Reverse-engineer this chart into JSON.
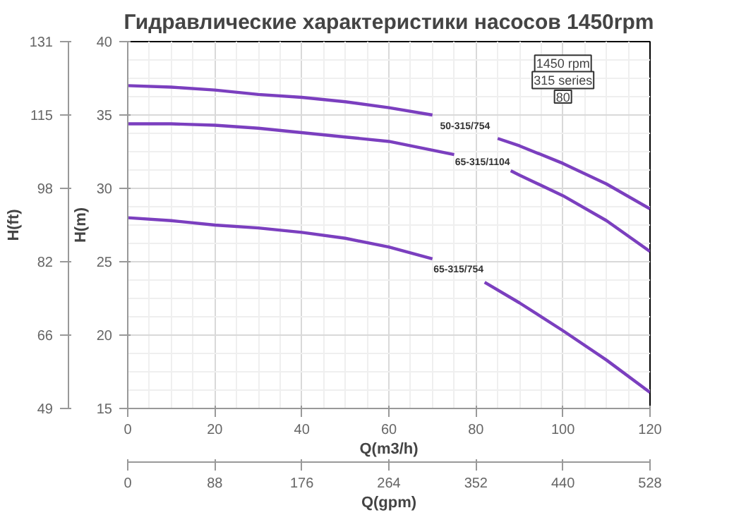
{
  "chart_data": {
    "type": "line",
    "title": "Гидравлические характеристики насосов 1450rpm",
    "xlabel": "Q(m3/h)",
    "ylabel": "H(m)",
    "y2label": "H(ft)",
    "x2label": "Q(gpm)",
    "xlim": [
      0,
      120
    ],
    "xticks": [
      0,
      20,
      40,
      60,
      80,
      100,
      120
    ],
    "x2lim": [
      0,
      528
    ],
    "x2ticks": [
      0,
      88,
      176,
      264,
      352,
      440,
      528
    ],
    "ylim": [
      15,
      40
    ],
    "yticks": [
      15,
      20,
      25,
      30,
      35,
      40
    ],
    "y2lim": [
      49.2,
      131.2
    ],
    "y2ticks": [
      {
        "value": 49.2,
        "label": "49"
      },
      {
        "value": 65.6,
        "label": "66"
      },
      {
        "value": 82.0,
        "label": "82"
      },
      {
        "value": 98.4,
        "label": "98"
      },
      {
        "value": 114.8,
        "label": "115"
      },
      {
        "value": 131.2,
        "label": "131"
      }
    ],
    "grid": true,
    "marker": "none",
    "line_style": "solid",
    "annotations": [
      "1450 rpm",
      "315 series",
      "80"
    ],
    "series": [
      {
        "name": "50-315/754",
        "color": "#7b3fbf",
        "x": [
          0,
          10,
          20,
          30,
          40,
          50,
          60,
          70,
          85,
          90,
          100,
          110,
          120
        ],
        "values": [
          37.0,
          36.9,
          36.7,
          36.4,
          36.2,
          35.9,
          35.5,
          35.0,
          33.4,
          32.9,
          31.7,
          30.3,
          28.6
        ]
      },
      {
        "name": "65-315/1104",
        "color": "#7b3fbf",
        "x": [
          0,
          10,
          20,
          30,
          40,
          50,
          60,
          70,
          75,
          88,
          90,
          100,
          110,
          120
        ],
        "values": [
          34.4,
          34.4,
          34.3,
          34.1,
          33.8,
          33.5,
          33.2,
          32.6,
          32.3,
          31.2,
          30.9,
          29.5,
          27.8,
          25.7
        ]
      },
      {
        "name": "65-315/754",
        "color": "#7b3fbf",
        "x": [
          0,
          10,
          20,
          30,
          40,
          50,
          60,
          70,
          82,
          90,
          100,
          110,
          120
        ],
        "values": [
          28.0,
          27.8,
          27.5,
          27.3,
          27.0,
          26.6,
          26.0,
          25.2,
          23.6,
          22.2,
          20.3,
          18.3,
          16.1
        ]
      }
    ]
  }
}
